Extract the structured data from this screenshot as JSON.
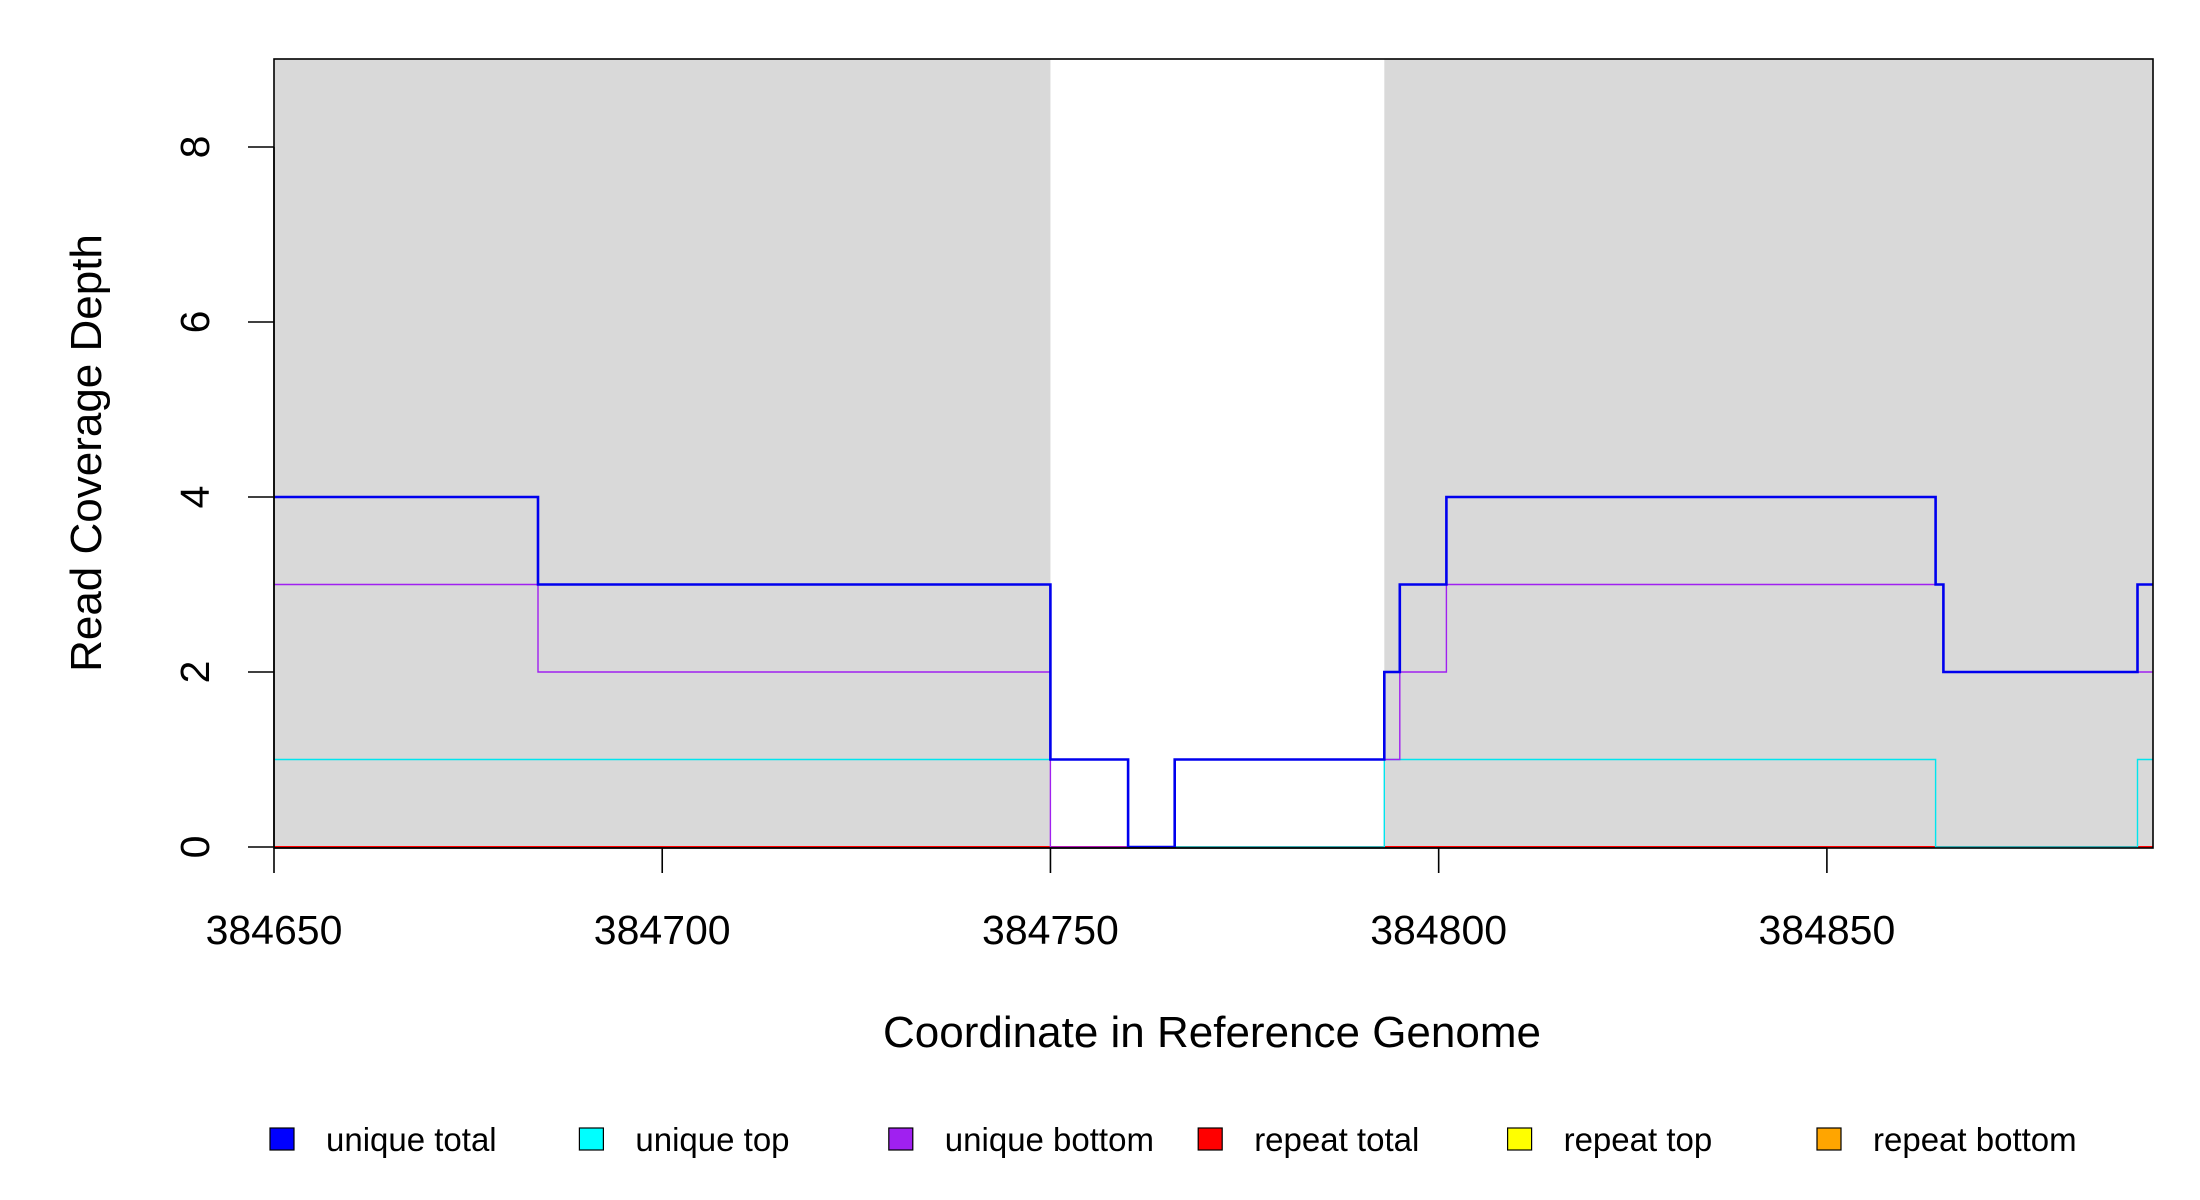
{
  "chart_data": {
    "type": "line",
    "step": true,
    "xlabel": "Coordinate in Reference Genome",
    "ylabel": "Read Coverage Depth",
    "xlim": [
      384650,
      384892
    ],
    "ylim": [
      0,
      9
    ],
    "x_ticks": [
      {
        "value": 384650,
        "label": "384650"
      },
      {
        "value": 384700,
        "label": "384700"
      },
      {
        "value": 384750,
        "label": "384750"
      },
      {
        "value": 384800,
        "label": "384800"
      },
      {
        "value": 384850,
        "label": "384850"
      }
    ],
    "y_ticks": [
      {
        "value": 0,
        "label": "0"
      },
      {
        "value": 2,
        "label": "2"
      },
      {
        "value": 4,
        "label": "4"
      },
      {
        "value": 6,
        "label": "6"
      },
      {
        "value": 8,
        "label": "8"
      }
    ],
    "shaded_regions": [
      {
        "from": 384650,
        "to": 384750,
        "color": "#d9d9d9"
      },
      {
        "from": 384793,
        "to": 384892,
        "color": "#d9d9d9"
      }
    ],
    "series": [
      {
        "name": "repeat bottom",
        "color": "#ffa500",
        "width": 2,
        "points": [
          [
            384650,
            0
          ],
          [
            384892,
            0
          ]
        ]
      },
      {
        "name": "repeat top",
        "color": "#ffff00",
        "width": 2,
        "points": [
          [
            384650,
            0
          ],
          [
            384892,
            0
          ]
        ]
      },
      {
        "name": "repeat total",
        "color": "#ff0000",
        "width": 2,
        "points": [
          [
            384650,
            0
          ],
          [
            384892,
            0
          ]
        ]
      },
      {
        "name": "unique top",
        "color": "#00e5ee",
        "width": 1.4,
        "points": [
          [
            384650,
            1
          ],
          [
            384750,
            1
          ],
          [
            384750,
            1
          ],
          [
            384760,
            1
          ],
          [
            384760,
            0
          ],
          [
            384793,
            0
          ],
          [
            384793,
            1
          ],
          [
            384864,
            1
          ],
          [
            384864,
            0
          ],
          [
            384890,
            0
          ],
          [
            384890,
            1
          ],
          [
            384892,
            1
          ]
        ]
      },
      {
        "name": "unique bottom",
        "color": "#a020f0",
        "width": 1.4,
        "points": [
          [
            384650,
            3
          ],
          [
            384684,
            3
          ],
          [
            384684,
            2
          ],
          [
            384750,
            2
          ],
          [
            384750,
            0
          ],
          [
            384766,
            0
          ],
          [
            384766,
            1
          ],
          [
            384795,
            1
          ],
          [
            384795,
            2
          ],
          [
            384801,
            2
          ],
          [
            384801,
            3
          ],
          [
            384865,
            3
          ],
          [
            384865,
            2
          ],
          [
            384892,
            2
          ]
        ]
      },
      {
        "name": "unique total",
        "color": "#0000ee",
        "width": 2.6,
        "points": [
          [
            384650,
            4
          ],
          [
            384684,
            4
          ],
          [
            384684,
            3
          ],
          [
            384750,
            3
          ],
          [
            384750,
            1
          ],
          [
            384760,
            1
          ],
          [
            384760,
            0
          ],
          [
            384766,
            0
          ],
          [
            384766,
            1
          ],
          [
            384793,
            1
          ],
          [
            384793,
            2
          ],
          [
            384795,
            2
          ],
          [
            384795,
            3
          ],
          [
            384801,
            3
          ],
          [
            384801,
            4
          ],
          [
            384864,
            4
          ],
          [
            384864,
            3
          ],
          [
            384865,
            3
          ],
          [
            384865,
            2
          ],
          [
            384890,
            2
          ],
          [
            384890,
            3
          ],
          [
            384892,
            3
          ]
        ]
      }
    ],
    "legend": {
      "placement": "bottom",
      "items": [
        {
          "label": "unique total",
          "color": "#0000ff"
        },
        {
          "label": "unique top",
          "color": "#00ffff"
        },
        {
          "label": "unique bottom",
          "color": "#a020f0"
        },
        {
          "label": "repeat total",
          "color": "#ff0000"
        },
        {
          "label": "repeat top",
          "color": "#ffff00"
        },
        {
          "label": "repeat bottom",
          "color": "#ffa500"
        }
      ]
    }
  }
}
